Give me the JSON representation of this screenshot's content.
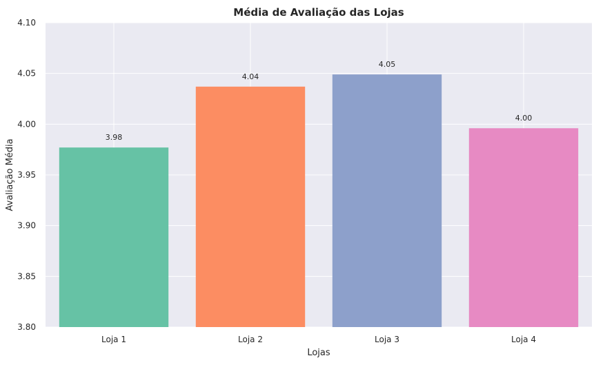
{
  "chart_data": {
    "type": "bar",
    "title": "Média de Avaliação das Lojas",
    "xlabel": "Lojas",
    "ylabel": "Avaliação Média",
    "categories": [
      "Loja 1",
      "Loja 2",
      "Loja 3",
      "Loja 4"
    ],
    "values": [
      3.977,
      4.037,
      4.049,
      3.996
    ],
    "data_labels": [
      "3.98",
      "4.04",
      "4.05",
      "4.00"
    ],
    "colors": [
      "#66c2a5",
      "#fc8d62",
      "#8da0cb",
      "#e78ac3"
    ],
    "ylim": [
      3.8,
      4.1
    ],
    "yticks": [
      "3.80",
      "3.85",
      "3.90",
      "3.95",
      "4.00",
      "4.05",
      "4.10"
    ],
    "ytick_values": [
      3.8,
      3.85,
      3.9,
      3.95,
      4.0,
      4.05,
      4.1
    ],
    "grid": true,
    "background": "#eaeaf2",
    "grid_color": "#ffffff"
  }
}
